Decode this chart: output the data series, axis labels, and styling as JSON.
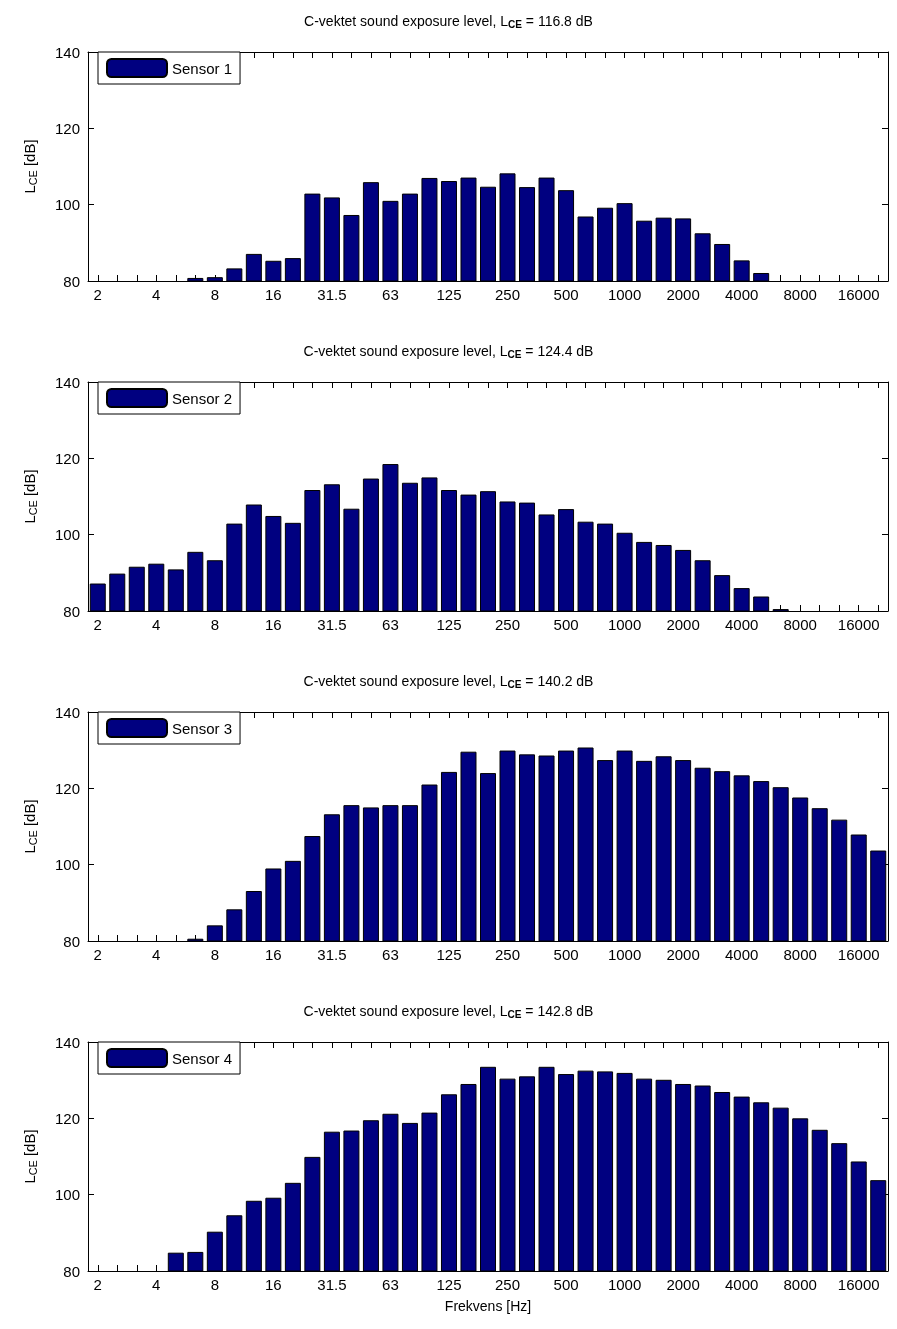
{
  "chart_data": [
    {
      "type": "bar",
      "title": "C-vektet sound exposure level, L$_{CE}$ = 116.8 dB",
      "ylabel": "L$_{CE}$ [dB]",
      "categories": [
        "2",
        null,
        null,
        "4",
        null,
        null,
        "8",
        null,
        null,
        "16",
        null,
        null,
        "31.5",
        null,
        null,
        "63",
        null,
        null,
        "125",
        null,
        null,
        "250",
        null,
        null,
        "500",
        null,
        null,
        "1000",
        null,
        null,
        "2000",
        null,
        null,
        "4000",
        null,
        null,
        "8000",
        null,
        null,
        "16000",
        null
      ],
      "series": [
        {
          "name": "Sensor 1",
          "color": "#000080",
          "values": [
            null,
            null,
            null,
            null,
            null,
            80.8,
            81,
            83.3,
            87.1,
            85.3,
            86,
            102.9,
            101.9,
            97.3,
            105.9,
            101,
            102.9,
            107,
            106.2,
            107.1,
            104.7,
            108.2,
            104.6,
            107.1,
            103.8,
            96.9,
            99.2,
            100.4,
            95.8,
            96.6,
            96.4,
            92.5,
            89.7,
            85.4,
            82.1,
            null,
            null,
            null,
            null,
            null,
            null
          ]
        }
      ],
      "ylim": [
        80,
        140
      ],
      "yticks": [
        80,
        100,
        120,
        140
      ],
      "legend": "top left",
      "grid": false
    },
    {
      "type": "bar",
      "title": "C-vektet sound exposure level, L$_{CE}$ = 124.4 dB",
      "ylabel": "L$_{CE}$ [dB]",
      "categories": [
        "2",
        null,
        null,
        "4",
        null,
        null,
        "8",
        null,
        null,
        "16",
        null,
        null,
        "31.5",
        null,
        null,
        "63",
        null,
        null,
        "125",
        null,
        null,
        "250",
        null,
        null,
        "500",
        null,
        null,
        "1000",
        null,
        null,
        "2000",
        null,
        null,
        "4000",
        null,
        null,
        "8000",
        null,
        null,
        "16000",
        null
      ],
      "series": [
        {
          "name": "Sensor 2",
          "color": "#000080",
          "values": [
            87.2,
            89.8,
            91.6,
            92.4,
            90.9,
            95.5,
            93.3,
            102.9,
            107.9,
            104.9,
            103.1,
            111.7,
            113.2,
            106.8,
            114.7,
            118.5,
            113.6,
            115,
            111.7,
            110.5,
            111.4,
            108.7,
            108.4,
            105.3,
            106.7,
            103.4,
            102.9,
            100.5,
            98.1,
            97.3,
            96,
            93.3,
            89.4,
            86,
            83.8,
            80.5,
            null,
            null,
            null,
            null,
            null
          ]
        }
      ],
      "ylim": [
        80,
        140
      ],
      "yticks": [
        80,
        100,
        120,
        140
      ],
      "legend": "top left",
      "grid": false
    },
    {
      "type": "bar",
      "title": "C-vektet sound exposure level, L$_{CE}$ = 140.2 dB",
      "ylabel": "L$_{CE}$ [dB]",
      "categories": [
        "2",
        null,
        null,
        "4",
        null,
        null,
        "8",
        null,
        null,
        "16",
        null,
        null,
        "31.5",
        null,
        null,
        "63",
        null,
        null,
        "125",
        null,
        null,
        "250",
        null,
        null,
        "500",
        null,
        null,
        "1000",
        null,
        null,
        "2000",
        null,
        null,
        "4000",
        null,
        null,
        "8000",
        null,
        null,
        "16000",
        null
      ],
      "series": [
        {
          "name": "Sensor 3",
          "color": "#000080",
          "values": [
            null,
            null,
            null,
            null,
            null,
            80.6,
            84.1,
            88.3,
            93.1,
            99,
            101,
            107.5,
            113.2,
            115.6,
            115,
            115.6,
            115.6,
            121,
            124.3,
            129.6,
            124,
            129.9,
            128.9,
            128.6,
            129.9,
            130.7,
            127.4,
            129.9,
            127.2,
            128.4,
            127.4,
            125.4,
            124.5,
            123.4,
            121.9,
            120.3,
            117.6,
            114.8,
            111.8,
            107.9,
            103.7
          ]
        }
      ],
      "ylim": [
        80,
        140
      ],
      "yticks": [
        80,
        100,
        120,
        140
      ],
      "legend": "top left",
      "grid": false
    },
    {
      "type": "bar",
      "title": "C-vektet sound exposure level, L$_{CE}$ = 142.8 dB",
      "ylabel": "L$_{CE}$ [dB]",
      "xlabel": "Frekvens [Hz]",
      "categories": [
        "2",
        null,
        null,
        "4",
        null,
        null,
        "8",
        null,
        null,
        "16",
        null,
        null,
        "31.5",
        null,
        null,
        "63",
        null,
        null,
        "125",
        null,
        null,
        "250",
        null,
        null,
        "500",
        null,
        null,
        "1000",
        null,
        null,
        "2000",
        null,
        null,
        "4000",
        null,
        null,
        "8000",
        null,
        null,
        "16000",
        null
      ],
      "series": [
        {
          "name": "Sensor 4",
          "color": "#000080",
          "values": [
            null,
            null,
            null,
            null,
            84.8,
            85,
            90.3,
            94.6,
            98.4,
            99.2,
            103.1,
            109.9,
            116.5,
            116.8,
            119.5,
            121.2,
            118.8,
            121.5,
            126.3,
            129,
            133.5,
            130.4,
            131,
            133.5,
            131.6,
            132.5,
            132.3,
            131.9,
            130.4,
            130.1,
            129,
            128.6,
            126.9,
            125.7,
            124.2,
            122.8,
            120,
            117,
            113.5,
            108.7,
            103.8
          ]
        }
      ],
      "ylim": [
        80,
        140
      ],
      "yticks": [
        80,
        100,
        120,
        140
      ],
      "legend": "top left",
      "grid": false
    }
  ]
}
